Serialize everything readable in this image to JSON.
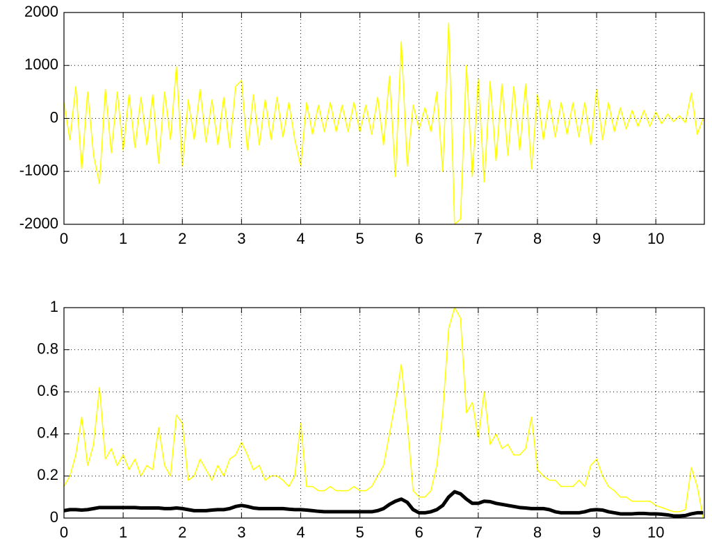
{
  "chart_data": [
    {
      "type": "line",
      "x": [
        0,
        0.1,
        0.2,
        0.3,
        0.4,
        0.5,
        0.6,
        0.7,
        0.8,
        0.9,
        1,
        1.1,
        1.2,
        1.3,
        1.4,
        1.5,
        1.6,
        1.7,
        1.8,
        1.9,
        2,
        2.1,
        2.2,
        2.3,
        2.4,
        2.5,
        2.6,
        2.7,
        2.8,
        2.9,
        3,
        3.1,
        3.2,
        3.3,
        3.4,
        3.5,
        3.6,
        3.7,
        3.8,
        3.9,
        4,
        4.1,
        4.2,
        4.3,
        4.4,
        4.5,
        4.6,
        4.7,
        4.8,
        4.9,
        5,
        5.1,
        5.2,
        5.3,
        5.4,
        5.5,
        5.6,
        5.7,
        5.8,
        5.9,
        6,
        6.1,
        6.2,
        6.3,
        6.4,
        6.5,
        6.6,
        6.7,
        6.8,
        6.9,
        7,
        7.1,
        7.2,
        7.3,
        7.4,
        7.5,
        7.6,
        7.7,
        7.8,
        7.9,
        8,
        8.1,
        8.2,
        8.3,
        8.4,
        8.5,
        8.6,
        8.7,
        8.8,
        8.9,
        9,
        9.1,
        9.2,
        9.3,
        9.4,
        9.5,
        9.6,
        9.7,
        9.8,
        9.9,
        10,
        10.1,
        10.2,
        10.3,
        10.4,
        10.5,
        10.6,
        10.7,
        10.8
      ],
      "series": [
        {
          "color": "#ffff00",
          "values": [
            300,
            -400,
            600,
            -950,
            500,
            -700,
            -1230,
            550,
            -650,
            500,
            -600,
            450,
            -550,
            400,
            -500,
            450,
            -850,
            500,
            -400,
            980,
            -900,
            350,
            -400,
            550,
            -450,
            350,
            -500,
            400,
            -550,
            600,
            720,
            -600,
            450,
            -500,
            350,
            -400,
            400,
            -350,
            300,
            -400,
            -900,
            300,
            -300,
            250,
            -250,
            300,
            -250,
            250,
            -250,
            300,
            -250,
            250,
            -300,
            400,
            -500,
            800,
            -1100,
            1450,
            -900,
            250,
            -200,
            200,
            -250,
            500,
            -1000,
            1800,
            -2000,
            -1900,
            1000,
            -1100,
            750,
            -1200,
            700,
            -800,
            650,
            -700,
            600,
            -600,
            650,
            -950,
            450,
            -400,
            350,
            -350,
            300,
            -300,
            300,
            -350,
            300,
            -500,
            550,
            -400,
            300,
            -250,
            200,
            -200,
            150,
            -150,
            150,
            -150,
            120,
            -100,
            80,
            -60,
            50,
            -80,
            480,
            -300,
            0
          ]
        }
      ],
      "xlim": [
        0,
        10.82
      ],
      "xticks": [
        0,
        1,
        2,
        3,
        4,
        5,
        6,
        7,
        8,
        9,
        10
      ],
      "ylim": [
        -2000,
        2000
      ],
      "yticks": [
        -2000,
        -1000,
        0,
        1000,
        2000
      ],
      "grid": true
    },
    {
      "type": "line",
      "x": [
        0,
        0.1,
        0.2,
        0.3,
        0.4,
        0.5,
        0.6,
        0.7,
        0.8,
        0.9,
        1,
        1.1,
        1.2,
        1.3,
        1.4,
        1.5,
        1.6,
        1.7,
        1.8,
        1.9,
        2,
        2.1,
        2.2,
        2.3,
        2.4,
        2.5,
        2.6,
        2.7,
        2.8,
        2.9,
        3,
        3.1,
        3.2,
        3.3,
        3.4,
        3.5,
        3.6,
        3.7,
        3.8,
        3.9,
        4,
        4.1,
        4.2,
        4.3,
        4.4,
        4.5,
        4.6,
        4.7,
        4.8,
        4.9,
        5,
        5.1,
        5.2,
        5.3,
        5.4,
        5.5,
        5.6,
        5.7,
        5.8,
        5.9,
        6,
        6.1,
        6.2,
        6.3,
        6.4,
        6.5,
        6.6,
        6.7,
        6.8,
        6.9,
        7,
        7.1,
        7.2,
        7.3,
        7.4,
        7.5,
        7.6,
        7.7,
        7.8,
        7.9,
        8,
        8.1,
        8.2,
        8.3,
        8.4,
        8.5,
        8.6,
        8.7,
        8.8,
        8.9,
        9,
        9.1,
        9.2,
        9.3,
        9.4,
        9.5,
        9.6,
        9.7,
        9.8,
        9.9,
        10,
        10.1,
        10.2,
        10.3,
        10.4,
        10.5,
        10.6,
        10.7,
        10.8
      ],
      "series": [
        {
          "color": "#ffff00",
          "values": [
            0.15,
            0.2,
            0.3,
            0.48,
            0.25,
            0.35,
            0.62,
            0.28,
            0.33,
            0.25,
            0.3,
            0.23,
            0.28,
            0.2,
            0.25,
            0.23,
            0.43,
            0.25,
            0.2,
            0.49,
            0.45,
            0.18,
            0.2,
            0.28,
            0.23,
            0.18,
            0.25,
            0.2,
            0.28,
            0.3,
            0.36,
            0.3,
            0.23,
            0.25,
            0.18,
            0.2,
            0.2,
            0.18,
            0.15,
            0.2,
            0.45,
            0.15,
            0.15,
            0.13,
            0.13,
            0.15,
            0.13,
            0.13,
            0.13,
            0.15,
            0.13,
            0.13,
            0.15,
            0.2,
            0.25,
            0.4,
            0.55,
            0.73,
            0.45,
            0.13,
            0.1,
            0.1,
            0.13,
            0.25,
            0.5,
            0.9,
            1,
            0.95,
            0.5,
            0.55,
            0.38,
            0.6,
            0.35,
            0.4,
            0.33,
            0.35,
            0.3,
            0.3,
            0.33,
            0.48,
            0.23,
            0.2,
            0.18,
            0.18,
            0.15,
            0.15,
            0.15,
            0.18,
            0.15,
            0.25,
            0.28,
            0.2,
            0.15,
            0.13,
            0.1,
            0.1,
            0.08,
            0.08,
            0.08,
            0.08,
            0.06,
            0.05,
            0.04,
            0.03,
            0.03,
            0.04,
            0.24,
            0.15,
            0
          ]
        },
        {
          "color": "#000000",
          "values": [
            0.035,
            0.04,
            0.04,
            0.038,
            0.04,
            0.045,
            0.05,
            0.05,
            0.05,
            0.05,
            0.05,
            0.05,
            0.05,
            0.048,
            0.048,
            0.048,
            0.048,
            0.045,
            0.045,
            0.048,
            0.045,
            0.04,
            0.035,
            0.035,
            0.035,
            0.038,
            0.04,
            0.04,
            0.045,
            0.055,
            0.06,
            0.055,
            0.048,
            0.045,
            0.045,
            0.045,
            0.045,
            0.045,
            0.042,
            0.04,
            0.04,
            0.038,
            0.035,
            0.032,
            0.03,
            0.03,
            0.03,
            0.03,
            0.03,
            0.03,
            0.03,
            0.03,
            0.03,
            0.035,
            0.045,
            0.065,
            0.08,
            0.09,
            0.075,
            0.04,
            0.025,
            0.025,
            0.03,
            0.04,
            0.06,
            0.1,
            0.125,
            0.115,
            0.09,
            0.07,
            0.07,
            0.08,
            0.078,
            0.07,
            0.065,
            0.06,
            0.055,
            0.05,
            0.048,
            0.045,
            0.045,
            0.045,
            0.04,
            0.03,
            0.025,
            0.025,
            0.025,
            0.025,
            0.03,
            0.038,
            0.04,
            0.038,
            0.03,
            0.025,
            0.02,
            0.02,
            0.02,
            0.022,
            0.022,
            0.02,
            0.02,
            0.018,
            0.015,
            0.01,
            0.01,
            0.012,
            0.02,
            0.025,
            0.025
          ]
        }
      ],
      "xlim": [
        0,
        10.82
      ],
      "xticks": [
        0,
        1,
        2,
        3,
        4,
        5,
        6,
        7,
        8,
        9,
        10
      ],
      "ylim": [
        0,
        1
      ],
      "yticks": [
        0,
        0.2,
        0.4,
        0.6,
        0.8,
        1
      ],
      "grid": true
    }
  ]
}
